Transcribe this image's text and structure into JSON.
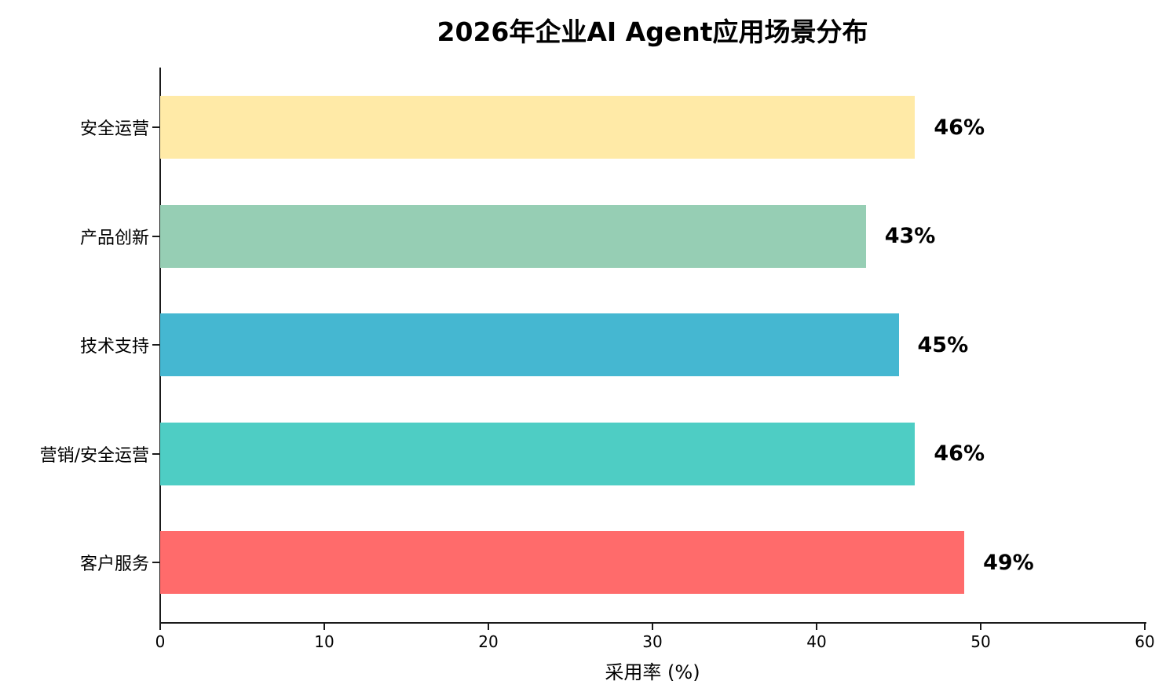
{
  "chart_data": {
    "type": "bar",
    "orientation": "horizontal",
    "title": "2026年企业AI Agent应用场景分布",
    "xlabel": "采用率 (%)",
    "ylabel": "",
    "categories": [
      "安全运营",
      "产品创新",
      "技术支持",
      "营销/安全运营",
      "客户服务"
    ],
    "values": [
      46,
      43,
      45,
      46,
      49
    ],
    "value_labels": [
      "46%",
      "43%",
      "45%",
      "46%",
      "49%"
    ],
    "bar_colors": [
      "#FFEAA7",
      "#96CEB4",
      "#45B7D1",
      "#4ECDC4",
      "#FF6B6B"
    ],
    "xlim": [
      0,
      60
    ],
    "x_ticks": [
      0,
      10,
      20,
      30,
      40,
      50,
      60
    ],
    "grid": false,
    "legend_position": "none",
    "background_color": "#FFFFFF",
    "axis_color": "#1A1A1A",
    "text_color": "#000000"
  }
}
